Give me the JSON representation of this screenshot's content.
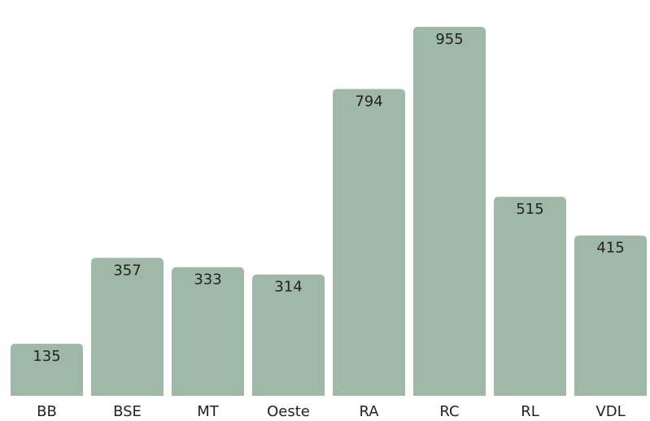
{
  "chart_data": {
    "type": "bar",
    "categories": [
      "BB",
      "BSE",
      "MT",
      "Oeste",
      "RA",
      "RC",
      "RL",
      "VDL"
    ],
    "values": [
      135,
      357,
      333,
      314,
      794,
      955,
      515,
      415
    ],
    "color": "#a0b8a8"
  }
}
